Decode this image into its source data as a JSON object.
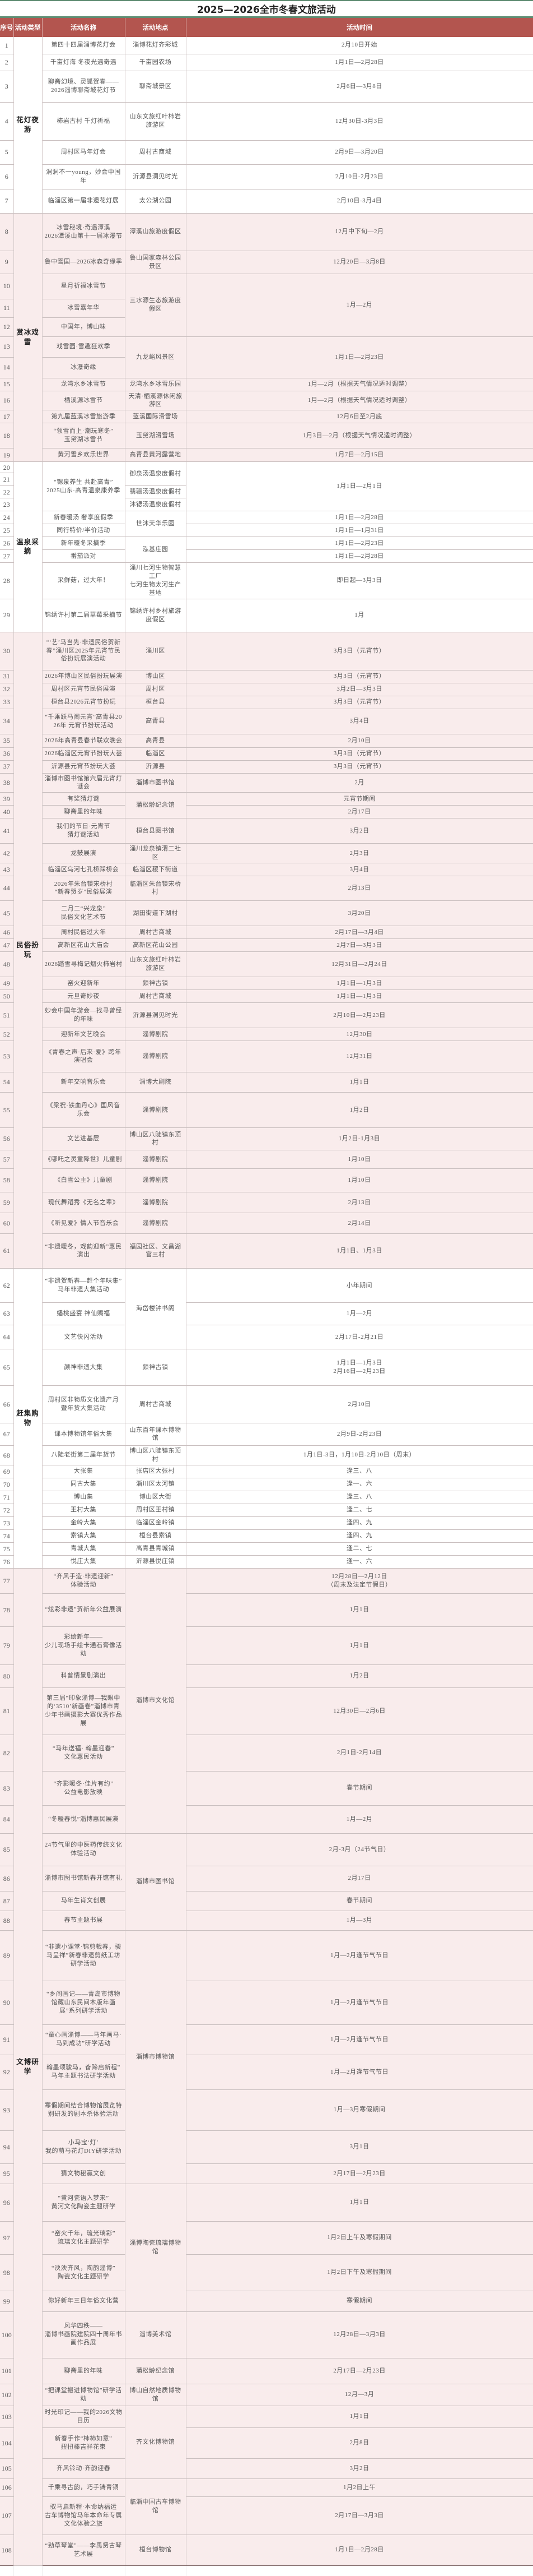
{
  "title": "2025—2026全市冬春文旅活动",
  "headers": [
    "序号",
    "活动类型",
    "活动名称",
    "活动地点",
    "活动时间"
  ],
  "colors": {
    "header_bg": "#b3554f",
    "band_pink": "#f9ecec",
    "title_rule": "#5f8c72"
  },
  "categories": [
    [
      "花灯夜游",
      7
    ],
    [
      "赏冰戏雪",
      12
    ],
    [
      "温泉采摘",
      10
    ],
    [
      "民俗扮玩",
      32
    ],
    [
      "赶集购物",
      15
    ],
    [
      "文博研学",
      32
    ]
  ],
  "rows": [
    [
      "1",
      "第四十四届淄博花灯会",
      "淄博花灯齐彩城",
      "2月10日开始"
    ],
    [
      "2",
      "千亩灯海 冬夜光遇奇遇",
      "千亩园农场",
      "1月1日—2月28日"
    ],
    [
      "3",
      "聊斋幻境、灵狐贺春——\n2026淄博聊斋城花灯节",
      "聊斋城景区",
      "2月6日—3月8日"
    ],
    [
      "4",
      "柿岩古村 千灯祈福",
      "山东文旅红叶柿岩旅游区",
      "12月30日-3月3日"
    ],
    [
      "5",
      "周村区马年灯会",
      "周村古商城",
      "2月9日—3月20日"
    ],
    [
      "6",
      "洞洞不一young，妙会中国年",
      "沂源县洞见时光",
      "2月10日-2月23日"
    ],
    [
      "7",
      "临淄区第一届非遗花灯展",
      "太公湖公园",
      "2月10日-3月4日"
    ],
    [
      "8",
      "冰雪秘境·奇遇潭溪\n2026潭溪山第十一届冰瀑节",
      "潭溪山旅游度假区",
      "12月中下旬—2月"
    ],
    [
      "9",
      "鲁中雪国—2026冰森奇缘季",
      "鲁山国家森林公园景区",
      "12月20日—3月8日"
    ],
    [
      "10",
      "星月祈福冰雪节",
      [
        "三水源生态旅游度假区",
        3
      ],
      [
        "1月—2月",
        3
      ]
    ],
    [
      "11",
      "冰雪嘉年华",
      null,
      null
    ],
    [
      "12",
      "中国年，博山味",
      null,
      null
    ],
    [
      "13",
      "戏雪园·雪趣狂欢季",
      [
        "九龙峪风景区",
        2
      ],
      [
        "1月1日—2月23日",
        2
      ]
    ],
    [
      "14",
      "冰瀑奇缘",
      null,
      null
    ],
    [
      "15",
      "龙湾水乡冰雪节",
      "龙湾水乡冰雪乐园",
      "1月—2月（根据天气情况适时调整）"
    ],
    [
      "16",
      "栖溪源冰雪节",
      "天清·栖溪源休闲旅游区",
      "1月—2月（根据天气情况适时调整）"
    ],
    [
      "17",
      "第九届蓝溪冰雪旅游季",
      "蓝溪国际滑雪场",
      "12月6日至2月底"
    ],
    [
      "18",
      "“领雪而上·潮玩寒冬”\n玉黛湖冰雪节",
      "玉黛湖滑雪场",
      "1月3日—2月（根据天气情况适时调整）"
    ],
    [
      "19",
      "黄河雪乡欢乐世界",
      "高青县黄河露营地",
      "1月7日—2月15日"
    ],
    [
      "20",
      [
        "“锶泉养生 共赴高青”\n2025山东·高青温泉康养季",
        4
      ],
      [
        "御泉汤温泉度假村",
        2
      ],
      [
        "1月1日—2月1日",
        4
      ]
    ],
    [
      "21",
      null,
      null,
      null
    ],
    [
      "22",
      null,
      "翡骊汤温泉度假村",
      null
    ],
    [
      "23",
      null,
      "沐锶汤温泉度假村",
      null
    ],
    [
      "24",
      "新春暖汤 奢享度假季",
      [
        "世沐天华乐园",
        2
      ],
      "1月1日—2月28日"
    ],
    [
      "25",
      "同行特价/半价活动",
      null,
      "1月1日—1月31日"
    ],
    [
      "26",
      "新年暖冬采摘季",
      [
        "泓基庄园",
        2
      ],
      "1月1日—2月23日"
    ],
    [
      "27",
      "番茄派对",
      null,
      "1月1日—2月28日"
    ],
    [
      "28",
      "采鲜菇，过大年！",
      "淄川七河生物智慧工厂\n七河生物太河生产基地",
      "即日起—3月3日"
    ],
    [
      "29",
      "锦绣许村第二届草莓采摘节",
      "锦绣许村乡村旅游度假区",
      "1月"
    ],
    [
      "30",
      "“‘艺’马当先·非遗民俗贺新春”淄川区2025年元宵节民俗扮玩展演活动",
      "淄川区",
      "3月3日（元宵节）"
    ],
    [
      "31",
      "2026年博山区民俗扮玩展演",
      "博山区",
      "3月3日（元宵节）"
    ],
    [
      "32",
      "周村区元宵节民俗展演",
      "周村区",
      "3月2日—3月3日"
    ],
    [
      "33",
      "桓台县2026元宵节扮玩",
      "桓台县",
      "3月3日（元宵节）"
    ],
    [
      "34",
      "“千乘跃马闹元宵”高青县2026年 元宵节扮玩活动",
      "高青县",
      "3月4日"
    ],
    [
      "35",
      "2026年高青县春节联欢晚会",
      "高青县",
      "2月10日"
    ],
    [
      "36",
      "2026临淄区元宵节扮玩大荟",
      "临淄区",
      "3月3日（元宵节）"
    ],
    [
      "37",
      "沂源县元宵节扮玩大荟",
      "沂源县",
      "3月3日（元宵节）"
    ],
    [
      "38",
      "淄博市图书馆第六届元宵灯谜会",
      "淄博市图书馆",
      "2月"
    ],
    [
      "39",
      "有奖猜灯谜",
      [
        "蒲松龄纪念馆",
        2
      ],
      "元宵节期间"
    ],
    [
      "40",
      "聊斋里的年味",
      null,
      "2月17日"
    ],
    [
      "41",
      "我们的节日·元宵节\n猜灯谜活动",
      "桓台县图书馆",
      "3月2日"
    ],
    [
      "42",
      "龙鼓展演",
      "淄川龙泉镇渭二社区",
      "2月3日"
    ],
    [
      "43",
      "临淄区乌河七孔桥踩桥会",
      "临淄区稷下街道",
      "3月4日"
    ],
    [
      "44",
      "2026年朱台镇宋桥村\n“新春贺岁”民俗展演",
      "临淄区朱台镇宋桥村",
      "2月13日"
    ],
    [
      "45",
      "二月二“兴龙泉”\n民俗文化艺术节",
      "湖田街道下湖村",
      "3月20日"
    ],
    [
      "46",
      "周村民俗过大年",
      "周村古商城",
      "2月17日—3月4日"
    ],
    [
      "47",
      "高新区花山大庙会",
      "高新区花山公园",
      "2月7日—3月3日"
    ],
    [
      "48",
      "2026踏雪寻梅记烟火柿岩村",
      "山东文旅红叶柿岩旅游区",
      "12月31日—2月24日"
    ],
    [
      "49",
      "窑火迎新年",
      "颜神古镇",
      "1月1日—1月3日"
    ],
    [
      "50",
      "元旦奇妙夜",
      "周村古商城",
      "1月1日—1月3日"
    ],
    [
      "51",
      "妙会中国年游会—找寻曾经的年味",
      "沂源县洞见时光",
      "2月10日—2月23日"
    ],
    [
      "52",
      "迎新年文艺晚会",
      "淄博剧院",
      "12月30日"
    ],
    [
      "53",
      "《青春之声·后来·爱》跨年演唱会",
      "淄博剧院",
      "12月31日"
    ],
    [
      "54",
      "新年交响音乐会",
      "淄博大剧院",
      "1月1日"
    ],
    [
      "55",
      "《梁祝·铁血丹心》国风音乐会",
      "淄博剧院",
      "1月2日"
    ],
    [
      "56",
      "文艺进基层",
      "博山区八陡镇东顶村",
      "1月2日-1月3日"
    ],
    [
      "57",
      "《哪吒之灵童降世》儿童剧",
      "淄博剧院",
      "1月10日"
    ],
    [
      "58",
      "《白雪公主》儿童剧",
      "淄博剧院",
      "1月10日"
    ],
    [
      "59",
      "现代舞蹈秀《无名之辈》",
      "淄博剧院",
      "2月13日"
    ],
    [
      "60",
      "《听见爱》情人节音乐会",
      "淄博剧院",
      "2月14日"
    ],
    [
      "61",
      "“非遗暖冬，戏韵迎新”惠民演出",
      "福园社区、文昌湖官三村",
      "1月1日、1月3日"
    ],
    [
      "62",
      "“非遗贺新春—赶个年味集”\n马年非遗大集活动",
      [
        "海岱楼钟书阁",
        3
      ],
      "小年期间"
    ],
    [
      "63",
      "蟠桃盛宴 神仙赐福",
      null,
      "1月—2月"
    ],
    [
      "64",
      "文艺快闪活动",
      null,
      "2月17日-2月21日"
    ],
    [
      "65",
      "颜神非遗大集",
      "颜神古镇",
      "1月1日—1月3日\n2月16日—2月23日"
    ],
    [
      "66",
      "周村区非物质文化遗产月\n暨年货大集活动",
      "周村古商城",
      "2月10日"
    ],
    [
      "67",
      "课本博物馆年俗大集",
      "山东百年课本博物馆",
      "2月9日-2月23日"
    ],
    [
      "68",
      "八陡老街第二届年货节",
      "博山区八陡镇东顶村",
      "1月1日-3日，1月10日-2月10日（周末）"
    ],
    [
      "69",
      "大张集",
      "张店区大张村",
      "逢三、八"
    ],
    [
      "70",
      "同古大集",
      "淄川区太河镇",
      "逢一、六"
    ],
    [
      "71",
      "博山集",
      "博山区大街",
      "逢三、八"
    ],
    [
      "72",
      "王村大集",
      "周村区王村镇",
      "逢二、七"
    ],
    [
      "73",
      "金岭大集",
      "临淄区金岭镇",
      "逢四、九"
    ],
    [
      "74",
      "索镇大集",
      "桓台县索镇",
      "逢四、九"
    ],
    [
      "75",
      "青城大集",
      "高青县青城镇",
      "逢二、七"
    ],
    [
      "76",
      "悦庄大集",
      "沂源县悦庄镇",
      "逢一、六"
    ],
    [
      "77",
      "“齐风手造·非遗迎新”\n体验活动",
      [
        "淄博市文化馆",
        8
      ],
      "12月28日—2月12日\n（周末及法定节假日）"
    ],
    [
      "78",
      "“炫彩非遗”贺新年公益展演",
      null,
      "1月1日"
    ],
    [
      "79",
      "彩绘新年——\n少儿现场手绘卡通石膏像活动",
      null,
      "1月1日"
    ],
    [
      "80",
      "科普情景剧演出",
      null,
      "1月2日"
    ],
    [
      "81",
      "第三届“印象淄博—我眼中的‘3510’新画卷”淄博市青少年书画摄影大赛优秀作品展",
      null,
      "12月30日—2月6日"
    ],
    [
      "82",
      "“马年送福· 翰墨迎春”\n文化惠民活动",
      null,
      "2月1日-2月14日"
    ],
    [
      "83",
      "“齐影暖冬·佳片有约”\n公益电影放映",
      null,
      "春节期间"
    ],
    [
      "84",
      "“冬暖春悦”淄博惠民展演",
      null,
      "1月—2月"
    ],
    [
      "85",
      "24节气里的中医药传统文化体验活动",
      [
        "淄博市图书馆",
        4
      ],
      "2月-3月（24节气日）"
    ],
    [
      "86",
      "淄博市图书馆新春开馆有礼",
      null,
      "2月17日"
    ],
    [
      "87",
      "马年生肖文创展",
      null,
      "春节期间"
    ],
    [
      "88",
      "春节主题书展",
      null,
      "1月—3月"
    ],
    [
      "89",
      "“非遗小课堂·锦剪裁春，骏马呈祥”新春非遗剪纸工坊研学活动",
      [
        "淄博市博物馆",
        7
      ],
      "1月—2月逢节气节日"
    ],
    [
      "90",
      "“乡间画记——青岛市博物馆藏山东民间木版年画展”系列研学活动",
      null,
      "1月—2月逢节气节日"
    ],
    [
      "91",
      "“童心画淄博——马年画马·马到成功”研学活动",
      null,
      "1月—2月逢节气节日"
    ],
    [
      "92",
      "翰墨颂骏马，奋蹄启新程”\n马年主题书法研学活动",
      null,
      "1月—2月逢节气节日"
    ],
    [
      "93",
      "寒假期间结合博物馆展览特别研发的剧本杀体验活动",
      null,
      "1月—3月寒假期间"
    ],
    [
      "94",
      "小马宝‘灯’\n我的萌马花灯DIY研学活动",
      null,
      "3月1日"
    ],
    [
      "95",
      "猜文物秘赢文创",
      null,
      "2月17日—2月23日"
    ],
    [
      "96",
      "“黄河瓷语入梦来”\n黄河文化陶瓷主题研学",
      [
        "淄博陶瓷琉璃博物馆",
        4
      ],
      "1月1日"
    ],
    [
      "97",
      "“窑火千年，琉光璃彩”\n琉璃文化主题研学",
      null,
      "1月2日上午及寒假期间"
    ],
    [
      "98",
      "“泱泱齐风，陶韵淄博”\n陶瓷文化主题研学",
      null,
      "1月2日下午及寒假期间"
    ],
    [
      "99",
      "你好新年三日年俗文化营",
      null,
      "寒假期间"
    ],
    [
      "100",
      "风华四秩——\n淄博书画院建院四十周年书画作品展",
      "淄博美术馆",
      "12月28日—3月3日"
    ],
    [
      "101",
      "聊斋里的年味",
      "蒲松龄纪念馆",
      "2月17日—2月23日"
    ],
    [
      "102",
      "“把课堂搬进博物馆”研学活动",
      "博山自然地质博物馆",
      "12月—3月"
    ],
    [
      "103",
      "时光印记——我的2026文物日历",
      [
        "齐文化博物馆",
        3
      ],
      "1月1日"
    ],
    [
      "104",
      "新春手作“柿柿如意”\n扭扭棒吉祥花束",
      null,
      "2月8日"
    ],
    [
      "105",
      "齐风铃动·齐韵迎春",
      null,
      "3月2日"
    ],
    [
      "106",
      "千乘寻古韵，巧手铸青铜",
      [
        "临淄中国古车博物馆",
        2
      ],
      "1月2日上午"
    ],
    [
      "107",
      "驭马启新程·本命纳福运\n古车博物馆马年本命年专属文化体验之旅",
      null,
      "2月17日—3月3日"
    ],
    [
      "108",
      "“劲草琴堂”——李禹贤古琴艺术展",
      "桓台博物馆",
      "1月1日—2月28日"
    ]
  ]
}
